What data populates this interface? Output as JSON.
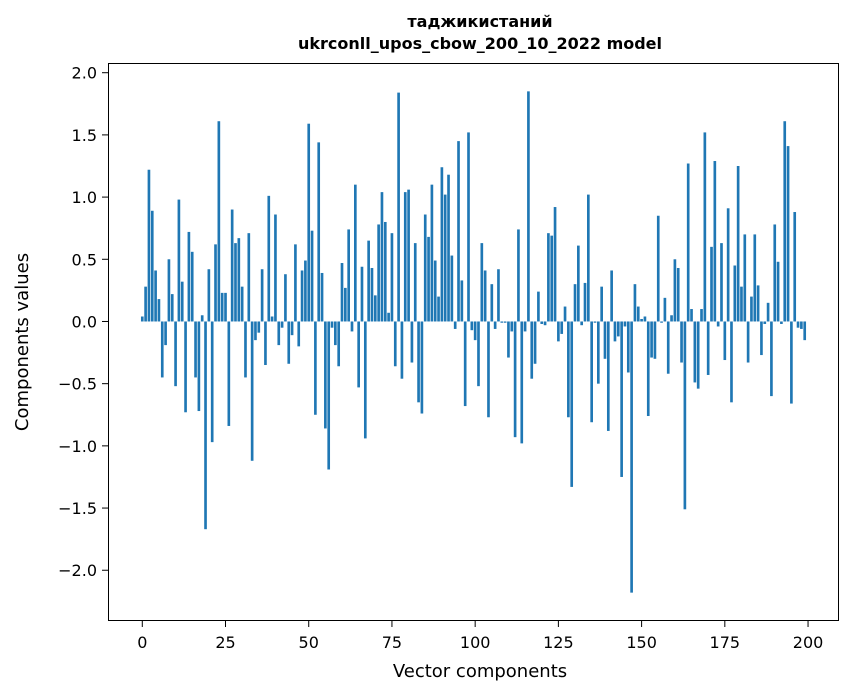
{
  "chart_data": {
    "type": "bar",
    "title_line1": "таджикистаний",
    "title_line2": "ukrconll_upos_cbow_200_10_2022 model",
    "xlabel": "Vector components",
    "ylabel": "Components values",
    "xlim": [
      -10,
      209
    ],
    "ylim": [
      -2.4,
      2.07
    ],
    "xticks": [
      0,
      25,
      50,
      75,
      100,
      125,
      150,
      175,
      200
    ],
    "yticks": [
      -2.0,
      -1.5,
      -1.0,
      -0.5,
      0.0,
      0.5,
      1.0,
      1.5,
      2.0
    ],
    "ytick_labels": [
      "−2.0",
      "−1.5",
      "−1.0",
      "−0.5",
      "0.0",
      "0.5",
      "1.0",
      "1.5",
      "2.0"
    ],
    "bar_color": "#1f77b4",
    "grid": false,
    "x": [
      0,
      1,
      2,
      3,
      4,
      5,
      6,
      7,
      8,
      9,
      10,
      11,
      12,
      13,
      14,
      15,
      16,
      17,
      18,
      19,
      20,
      21,
      22,
      23,
      24,
      25,
      26,
      27,
      28,
      29,
      30,
      31,
      32,
      33,
      34,
      35,
      36,
      37,
      38,
      39,
      40,
      41,
      42,
      43,
      44,
      45,
      46,
      47,
      48,
      49,
      50,
      51,
      52,
      53,
      54,
      55,
      56,
      57,
      58,
      59,
      60,
      61,
      62,
      63,
      64,
      65,
      66,
      67,
      68,
      69,
      70,
      71,
      72,
      73,
      74,
      75,
      76,
      77,
      78,
      79,
      80,
      81,
      82,
      83,
      84,
      85,
      86,
      87,
      88,
      89,
      90,
      91,
      92,
      93,
      94,
      95,
      96,
      97,
      98,
      99,
      100,
      101,
      102,
      103,
      104,
      105,
      106,
      107,
      108,
      109,
      110,
      111,
      112,
      113,
      114,
      115,
      116,
      117,
      118,
      119,
      120,
      121,
      122,
      123,
      124,
      125,
      126,
      127,
      128,
      129,
      130,
      131,
      132,
      133,
      134,
      135,
      136,
      137,
      138,
      139,
      140,
      141,
      142,
      143,
      144,
      145,
      146,
      147,
      148,
      149,
      150,
      151,
      152,
      153,
      154,
      155,
      156,
      157,
      158,
      159,
      160,
      161,
      162,
      163,
      164,
      165,
      166,
      167,
      168,
      169,
      170,
      171,
      172,
      173,
      174,
      175,
      176,
      177,
      178,
      179,
      180,
      181,
      182,
      183,
      184,
      185,
      186,
      187,
      188,
      189,
      190,
      191,
      192,
      193,
      194,
      195,
      196,
      197,
      198,
      199
    ],
    "values": [
      0.04,
      0.28,
      1.22,
      0.89,
      0.41,
      0.18,
      -0.45,
      -0.19,
      0.5,
      0.22,
      -0.52,
      0.98,
      0.32,
      -0.73,
      0.72,
      0.56,
      -0.45,
      -0.72,
      0.05,
      -1.67,
      0.42,
      -0.97,
      0.62,
      1.61,
      0.23,
      0.23,
      -0.84,
      0.9,
      0.63,
      0.67,
      0.28,
      -0.45,
      0.71,
      -1.12,
      -0.15,
      -0.09,
      0.42,
      -0.35,
      1.01,
      0.04,
      0.86,
      -0.19,
      -0.05,
      0.38,
      -0.34,
      -0.11,
      0.62,
      -0.2,
      0.41,
      0.49,
      1.59,
      0.73,
      -0.75,
      1.44,
      0.39,
      -0.86,
      -1.19,
      -0.05,
      -0.19,
      -0.36,
      0.47,
      0.27,
      0.74,
      -0.08,
      1.1,
      -0.53,
      0.44,
      -0.94,
      0.65,
      0.43,
      0.21,
      0.78,
      1.04,
      0.8,
      0.07,
      0.71,
      -0.36,
      1.84,
      -0.46,
      1.04,
      1.06,
      -0.33,
      0.63,
      -0.65,
      -0.74,
      0.86,
      0.68,
      1.1,
      0.49,
      0.2,
      1.24,
      1.02,
      1.18,
      0.53,
      -0.06,
      1.45,
      0.33,
      -0.68,
      1.52,
      -0.07,
      -0.15,
      -0.52,
      0.63,
      0.41,
      -0.77,
      0.3,
      -0.06,
      0.42,
      -0.01,
      -0.01,
      -0.29,
      -0.08,
      -0.93,
      0.74,
      -0.98,
      -0.08,
      1.85,
      -0.46,
      -0.34,
      0.24,
      -0.02,
      -0.03,
      0.71,
      0.69,
      0.92,
      -0.16,
      -0.1,
      0.12,
      -0.77,
      -1.33,
      0.3,
      0.61,
      -0.03,
      0.31,
      1.02,
      -0.81,
      -0.01,
      -0.5,
      0.28,
      -0.3,
      -0.88,
      0.41,
      -0.16,
      -0.12,
      -1.25,
      -0.04,
      -0.41,
      -2.18,
      0.3,
      0.12,
      0.02,
      0.04,
      -0.76,
      -0.29,
      -0.3,
      0.85,
      -0.01,
      0.19,
      -0.42,
      0.05,
      0.5,
      0.43,
      -0.33,
      -1.51,
      1.27,
      0.1,
      -0.49,
      -0.54,
      0.1,
      1.52,
      -0.43,
      0.6,
      1.29,
      -0.04,
      0.63,
      -0.31,
      0.91,
      -0.65,
      0.45,
      1.25,
      0.28,
      0.7,
      -0.33,
      0.2,
      0.7,
      0.29,
      -0.27,
      -0.02,
      0.15,
      -0.6,
      0.78,
      0.48,
      -0.02,
      1.61,
      1.41,
      -0.66,
      0.88,
      -0.05,
      -0.06,
      -0.15
    ]
  }
}
